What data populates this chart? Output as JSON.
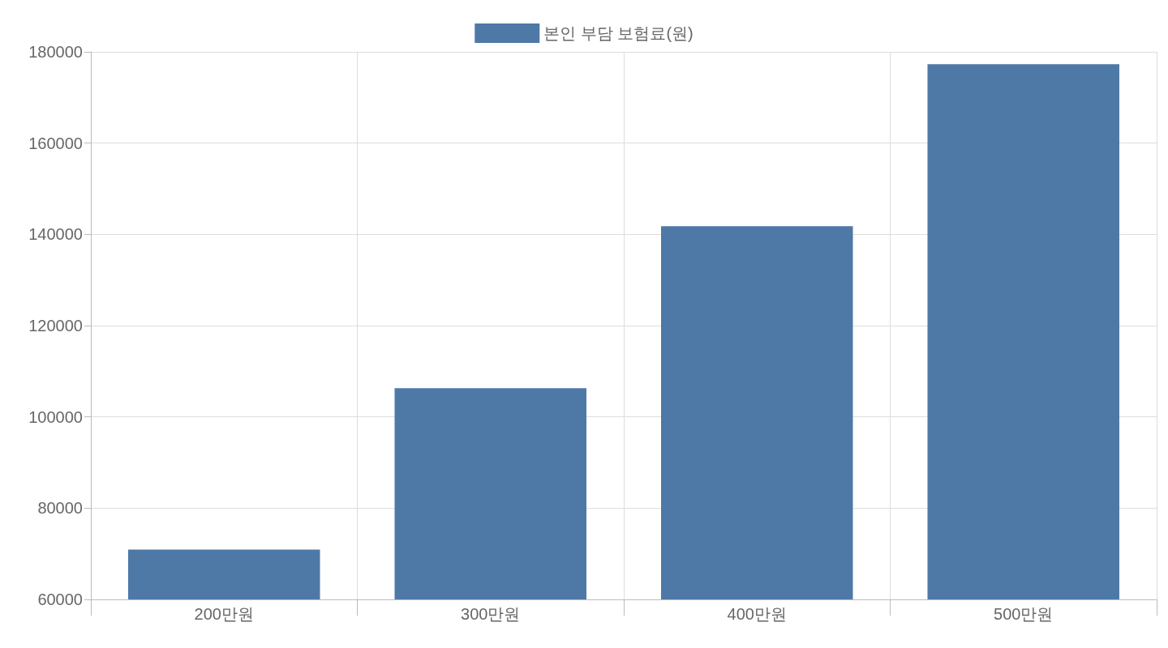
{
  "chart_data": {
    "type": "bar",
    "categories": [
      "200만원",
      "300만원",
      "400만원",
      "500만원"
    ],
    "series": [
      {
        "name": "본인 부담 보험료(원)",
        "color": "#4e79a7",
        "values": [
          70900,
          106300,
          141800,
          177300
        ]
      }
    ],
    "ylim": [
      60000,
      180000
    ],
    "yticks": [
      60000,
      80000,
      100000,
      120000,
      140000,
      160000,
      180000
    ],
    "grid": true,
    "legend": "top"
  }
}
